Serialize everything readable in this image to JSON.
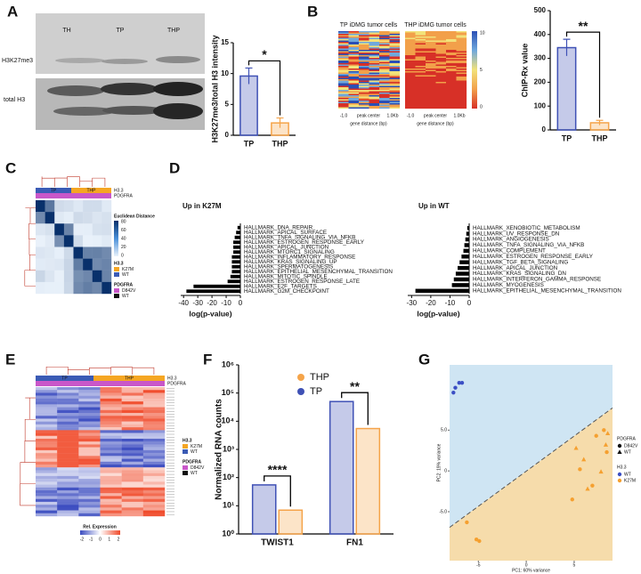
{
  "panel_labels": [
    "A",
    "B",
    "C",
    "D",
    "E",
    "F",
    "G"
  ],
  "blot": {
    "lanes": [
      "TH",
      "TP",
      "THP"
    ],
    "rows": [
      "H3K27me3",
      "total H3"
    ]
  },
  "heatmap_B": {
    "titles": [
      "TP iDMG tumor cells",
      "THP iDMG tumor cells"
    ],
    "x_labels": [
      "-1.0",
      "peak center",
      "1.0Kb"
    ],
    "xlabel": "gene distance (bp)",
    "colorbar_ticks": [
      10,
      5,
      0
    ]
  },
  "clustermap_C": {
    "col_groups": [
      "TP",
      "THP"
    ],
    "tracks": [
      "H3.3",
      "PDGFRA"
    ],
    "colorbar_title": "Euclidean Distance",
    "colorbar_ticks": [
      80,
      60,
      40,
      20,
      0
    ],
    "legend": [
      {
        "title": "H3.3",
        "items": [
          "K27M",
          "WT"
        ],
        "colors": [
          "#f5a623",
          "#3b5bb5"
        ]
      },
      {
        "title": "PDGFRA",
        "items": [
          "D842V",
          "WT"
        ],
        "colors": [
          "#c957c9",
          "#111111"
        ]
      }
    ]
  },
  "heatmap_E": {
    "col_groups": [
      "TP",
      "THP"
    ],
    "tracks": [
      "H3.3",
      "PDGFRA"
    ],
    "colorbar_title": "Rel. Expression",
    "colorbar_ticks": [
      -2,
      -1,
      0,
      1,
      2
    ],
    "legend": [
      {
        "title": "H3.3",
        "items": [
          "K27M",
          "WT"
        ],
        "colors": [
          "#f5a623",
          "#3b5bb5"
        ]
      },
      {
        "title": "PDGFRA",
        "items": [
          "D842V",
          "WT"
        ],
        "colors": [
          "#c957c9",
          "#111111"
        ]
      }
    ]
  },
  "chart_data": [
    {
      "type": "bar",
      "ylabel": "H3K27me3/total H3 intensity",
      "categories": [
        "TP",
        "THP"
      ],
      "values": [
        9.6,
        2.0
      ],
      "errors": [
        1.3,
        0.8
      ],
      "colors": [
        "#3f51b5",
        "#f5a44a"
      ],
      "ylim": [
        0,
        15
      ],
      "yticks": [
        0,
        5,
        10,
        15
      ],
      "annotation": "*"
    },
    {
      "type": "bar",
      "ylabel": "ChIP-Rx value",
      "categories": [
        "TP",
        "THP"
      ],
      "values": [
        345,
        30
      ],
      "errors": [
        35,
        10
      ],
      "colors": [
        "#3f51b5",
        "#f5a44a"
      ],
      "ylim": [
        0,
        500
      ],
      "yticks": [
        0,
        100,
        200,
        300,
        400,
        500
      ],
      "annotation": "**"
    },
    {
      "type": "barh",
      "title": "Up in K27M",
      "xlabel": "log(p-value)",
      "color": "#000000",
      "categories": [
        "HALLMARK_DNA_REPAIR",
        "HALLMARK_APICAL_SURFACE",
        "HALLMARK_TNFA_SIGNALING_VIA_NFKB",
        "HALLMARK_ESTROGEN_RESPONSE_EARLY",
        "HALLMARK_APICAL_JUNCTION",
        "HALLMARK_MTORC1_SIGNALING",
        "HALLMARK_INFLAMMATORY_RESPONSE",
        "HALLMARK_KRAS_SIGNALING_UP",
        "HALLMARK_SPERMATOGENESIS",
        "HALLMARK_EPITHELIAL_MESENCHYMAL_TRANSITION",
        "HALLMARK_MITOTIC_SPINDLE",
        "HALLMARK_ESTROGEN_RESPONSE_LATE",
        "HALLMARK_E2F_TARGETS",
        "HALLMARK_G2M_CHECKPOINT"
      ],
      "values": [
        -2,
        -3,
        -4,
        -5,
        -5,
        -5,
        -6,
        -6,
        -6,
        -6,
        -7,
        -9,
        -33,
        -38
      ],
      "xlim": [
        -42,
        0
      ],
      "xticks": [
        -40,
        -30,
        -20,
        -10,
        0
      ]
    },
    {
      "type": "barh",
      "title": "Up in WT",
      "xlabel": "log(p-value)",
      "color": "#000000",
      "categories": [
        "HALLMARK_XENOBIOTIC_METABOLISM",
        "HALLMARK_UV_RESPONSE_DN",
        "HALLMARK_ANGIOGENESIS",
        "HALLMARK_TNFA_SIGNALING_VIA_NFKB",
        "HALLMARK_COMPLEMENT",
        "HALLMARK_ESTROGEN_RESPONSE_EARLY",
        "HALLMARK_TGF_BETA_SIGNALING",
        "HALLMARK_APICAL_JUNCTION",
        "HALLMARK_KRAS_SIGNALING_DN",
        "HALLMARK_INTERFERON_GAMMA_RESPONSE",
        "HALLMARK_MYOGENESIS",
        "HALLMARK_EPITHELIAL_MESENCHYMAL_TRANSITION"
      ],
      "values": [
        -1,
        -1.5,
        -2,
        -2.5,
        -3,
        -4,
        -5,
        -6,
        -7,
        -8,
        -9,
        -28
      ],
      "xlim": [
        -32,
        0
      ],
      "xticks": [
        -30,
        -20,
        -10,
        0
      ]
    },
    {
      "type": "bar",
      "ylabel": "Normalized RNA counts",
      "categories": [
        "TWIST1",
        "FN1"
      ],
      "log_scale": true,
      "series": [
        {
          "name": "TP",
          "color": "#3f51b5",
          "values": [
            55,
            50000
          ]
        },
        {
          "name": "THP",
          "color": "#f5a44a",
          "values": [
            7,
            5500
          ]
        }
      ],
      "ylim": [
        1,
        1000000
      ],
      "yticks": [
        {
          "value": 1,
          "label": "10⁰"
        },
        {
          "value": 10,
          "label": "10¹"
        },
        {
          "value": 100,
          "label": "10²"
        },
        {
          "value": 1000,
          "label": "10³"
        },
        {
          "value": 10000,
          "label": "10⁴"
        },
        {
          "value": 100000,
          "label": "10⁵"
        },
        {
          "value": 1000000,
          "label": "10⁶"
        }
      ],
      "annotations": [
        "****",
        "**"
      ]
    },
    {
      "type": "scatter",
      "xlabel": "PC1: 60% variance",
      "ylabel": "PC2: 19% variance",
      "color_legend_title": "H3.3",
      "shape_legend": {
        "title": "PDGFRA",
        "labels": [
          "D842V",
          "WT"
        ]
      },
      "series": [
        {
          "name": "WT",
          "color": "#3b4fc4",
          "x": [
            -7.6,
            -7.4,
            -7.0,
            -6.7
          ],
          "values": [
            9.6,
            10.2,
            10.8,
            10.8
          ],
          "markers": [
            "circle",
            "circle",
            "circle",
            "circle"
          ]
        },
        {
          "name": "K27M",
          "color": "#f5a030",
          "x": [
            -6.2,
            -5.2,
            -4.9,
            4.8,
            5.2,
            5.6,
            6.0,
            6.4,
            6.9,
            7.3,
            7.8,
            8.1,
            8.3,
            8.5,
            8.4
          ],
          "values": [
            -6.3,
            -8.4,
            -8.6,
            -3.5,
            2.8,
            0.2,
            1.4,
            -2.2,
            -1.8,
            4.3,
            -0.1,
            5.0,
            3.2,
            4.6,
            2.3
          ],
          "markers": [
            "circle",
            "circle",
            "circle",
            "circle",
            "triangle",
            "circle",
            "triangle",
            "triangle",
            "circle",
            "circle",
            "triangle",
            "circle",
            "triangle",
            "triangle",
            "circle"
          ]
        }
      ],
      "xlim": [
        -8,
        9
      ],
      "ylim": [
        -11,
        13
      ],
      "xticks": [
        -5,
        0,
        5
      ],
      "yticks": [
        {
          "value": -5,
          "label": "-5.0"
        },
        0,
        {
          "value": 5,
          "label": "5.0"
        }
      ]
    }
  ]
}
